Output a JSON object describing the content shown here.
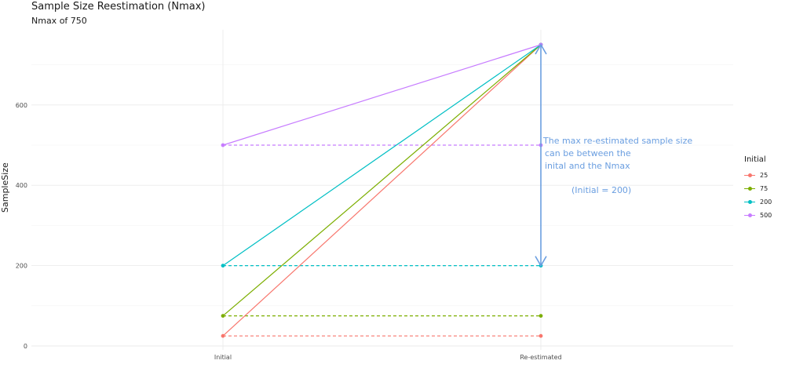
{
  "chart_data": {
    "type": "line",
    "title": "Sample Size Reestimation (Nmax)",
    "subtitle": "Nmax of 750",
    "ylabel": "SampleSize",
    "xlabel": "",
    "categories": [
      "Initial",
      "Re-estimated"
    ],
    "ylim": [
      -5,
      780
    ],
    "yticks": [
      0,
      200,
      400,
      600
    ],
    "grid": true,
    "legend": {
      "title": "Initial",
      "position": "right"
    },
    "series": [
      {
        "name": "25",
        "color": "#F8766D",
        "initial": 25,
        "nmax": 750,
        "dashed_level": 25
      },
      {
        "name": "75",
        "color": "#7CAE00",
        "initial": 75,
        "nmax": 750,
        "dashed_level": 75
      },
      {
        "name": "200",
        "color": "#00BFC4",
        "initial": 200,
        "nmax": 750,
        "dashed_level": 200
      },
      {
        "name": "500",
        "color": "#C77CFF",
        "initial": 500,
        "nmax": 750,
        "dashed_level": 500
      }
    ],
    "annotation": {
      "lines": [
        "The max re-estimated sample size",
        "can be between the",
        "inital and the Nmax"
      ],
      "note": "(Initial = 200)",
      "color": "#6a9ee0",
      "arrow_from": 200,
      "arrow_to": 750
    }
  }
}
